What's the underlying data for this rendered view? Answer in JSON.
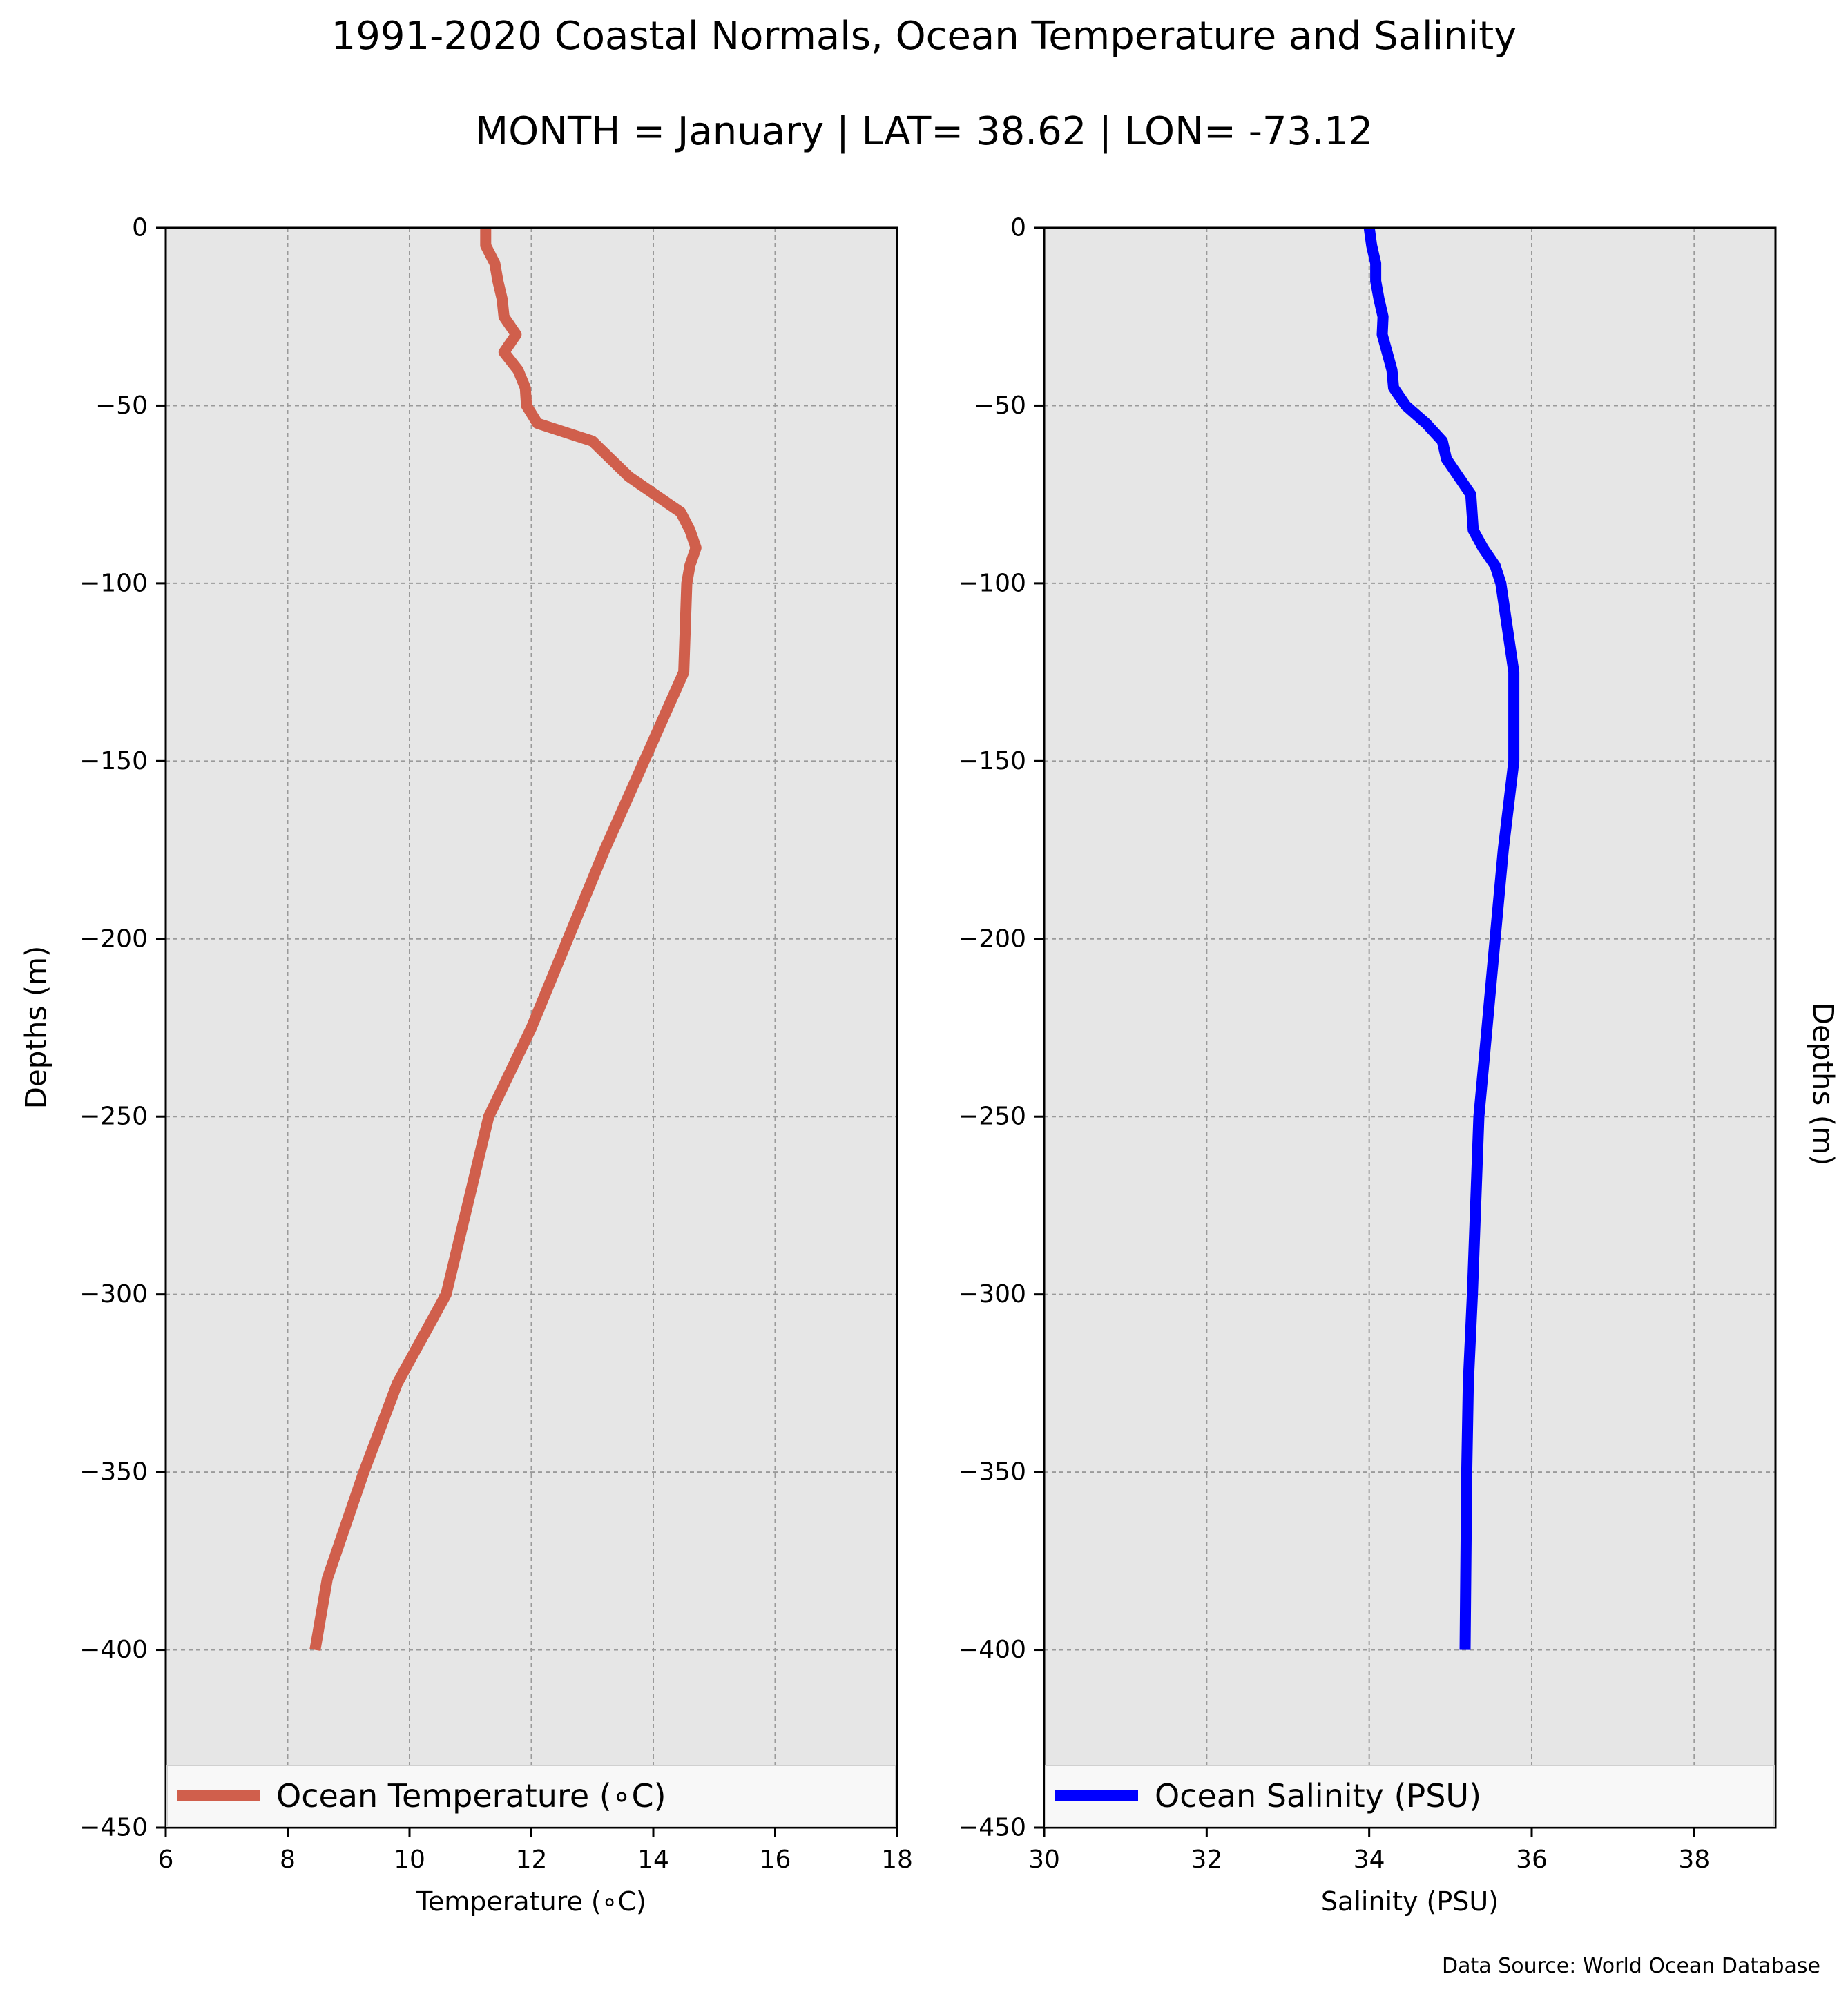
{
  "title": "1991-2020 Coastal Normals, Ocean Temperature and Salinity",
  "subtitle": "MONTH = January | LAT= 38.62 | LON= -73.12",
  "source": "Data Source: World Ocean Database",
  "colors": {
    "background_plot": "#e6e6e6",
    "temperature": "#d05f4c",
    "salinity": "#0000ff",
    "grid": "#9a9a9a"
  },
  "chart_data": [
    {
      "type": "line",
      "xlabel": "Temperature ($^\\circ$C)",
      "xlabel_display": "Temperature (∘C)",
      "ylabel": "Depths (m)",
      "xlim": [
        6,
        18
      ],
      "ylim": [
        -450,
        0
      ],
      "xticks": [
        6,
        8,
        10,
        12,
        14,
        16,
        18
      ],
      "yticks": [
        0,
        -50,
        -100,
        -150,
        -200,
        -250,
        -300,
        -350,
        -400,
        -450
      ],
      "grid": true,
      "legend_position": "lower center",
      "series": [
        {
          "name": "Ocean Temperature (∘C)",
          "x": [
            11.25,
            11.25,
            11.4,
            11.45,
            11.52,
            11.55,
            11.75,
            11.55,
            11.78,
            11.9,
            11.92,
            12.1,
            13.0,
            13.6,
            14.45,
            14.6,
            14.7,
            14.6,
            14.55,
            14.5,
            13.85,
            13.2,
            12.6,
            12.0,
            11.3,
            10.6,
            9.8,
            9.25,
            8.65,
            8.45
          ],
          "y": [
            0,
            -5,
            -10,
            -15,
            -20,
            -25,
            -30,
            -35,
            -40,
            -45,
            -50,
            -55,
            -60,
            -70,
            -80,
            -85,
            -90,
            -95,
            -100,
            -125,
            -150,
            -175,
            -200,
            -225,
            -250,
            -300,
            -325,
            -350,
            -380,
            -400
          ]
        }
      ]
    },
    {
      "type": "line",
      "xlabel": "Salinity (PSU)",
      "ylabel": "Depths (m)",
      "xlim": [
        30,
        39
      ],
      "ylim": [
        -450,
        0
      ],
      "xticks": [
        30,
        32,
        34,
        36,
        38
      ],
      "yticks": [
        0,
        -50,
        -100,
        -150,
        -200,
        -250,
        -300,
        -350,
        -400,
        -450
      ],
      "grid": true,
      "legend_position": "lower center",
      "series": [
        {
          "name": "Ocean Salinity (PSU)",
          "x": [
            34.0,
            34.03,
            34.08,
            34.08,
            34.12,
            34.17,
            34.16,
            34.22,
            34.28,
            34.3,
            34.45,
            34.7,
            34.9,
            34.95,
            35.1,
            35.25,
            35.28,
            35.4,
            35.55,
            35.62,
            35.78,
            35.78,
            35.65,
            35.55,
            35.45,
            35.35,
            35.27,
            35.22,
            35.2,
            35.18
          ],
          "y": [
            0,
            -5,
            -10,
            -15,
            -20,
            -25,
            -30,
            -35,
            -40,
            -45,
            -50,
            -55,
            -60,
            -65,
            -70,
            -75,
            -85,
            -90,
            -95,
            -100,
            -125,
            -150,
            -175,
            -200,
            -225,
            -250,
            -300,
            -325,
            -350,
            -400
          ]
        }
      ]
    }
  ]
}
